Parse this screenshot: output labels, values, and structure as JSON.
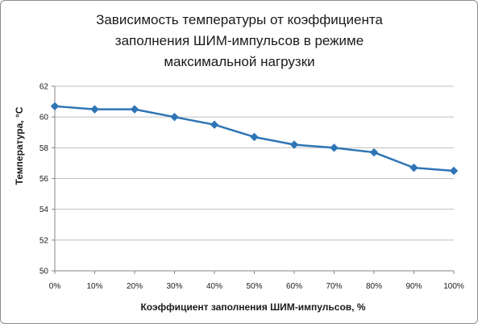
{
  "chart_data": {
    "type": "line",
    "title": [
      "Зависимость температуры  от коэффициента",
      "заполнения ШИМ-импульсов в режиме",
      "максимальной нагрузки"
    ],
    "xlabel": "Коэффициент заполнения ШИМ-импульсов, %",
    "ylabel": "Температура, °C",
    "categories": [
      "0%",
      "10%",
      "20%",
      "30%",
      "40%",
      "50%",
      "60%",
      "70%",
      "80%",
      "90%",
      "100%"
    ],
    "y_ticks": [
      "50",
      "52",
      "54",
      "56",
      "58",
      "60",
      "62"
    ],
    "ylim": [
      50,
      62
    ],
    "grid": "horizontal",
    "legend": "none",
    "series": [
      {
        "color": "#2e75b6",
        "marker": "diamond",
        "values": [
          60.7,
          60.5,
          60.5,
          60.0,
          59.5,
          58.7,
          58.2,
          58.0,
          57.7,
          56.7,
          56.5
        ]
      }
    ]
  }
}
